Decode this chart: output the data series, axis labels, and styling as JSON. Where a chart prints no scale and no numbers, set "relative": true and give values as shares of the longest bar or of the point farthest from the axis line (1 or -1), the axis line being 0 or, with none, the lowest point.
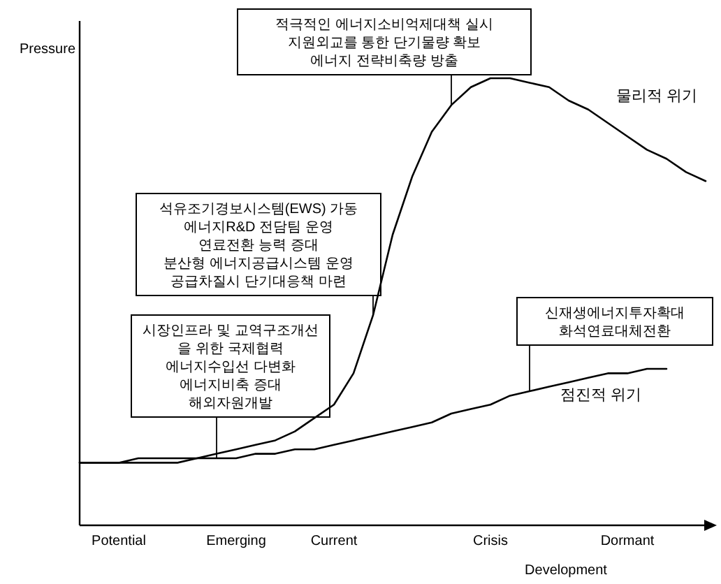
{
  "chart_data": {
    "type": "line",
    "relative": true,
    "xlabel": "Development",
    "ylabel": "Pressure",
    "categories": [
      null,
      null,
      "Potential",
      null,
      null,
      null,
      null,
      null,
      "Emerging",
      null,
      null,
      null,
      null,
      "Current",
      null,
      null,
      null,
      null,
      null,
      null,
      null,
      "Crisis",
      null,
      null,
      null,
      null,
      null,
      null,
      "Dormant",
      null,
      null,
      null,
      null
    ],
    "series": [
      {
        "name": "물리적 위기",
        "color": "#000000",
        "values": [
          0.14,
          0.14,
          0.14,
          0.15,
          0.15,
          0.15,
          0.15,
          0.16,
          0.17,
          0.18,
          0.19,
          0.21,
          0.24,
          0.27,
          0.34,
          0.47,
          0.65,
          0.78,
          0.88,
          0.94,
          0.98,
          1.0,
          1.0,
          0.99,
          0.98,
          0.95,
          0.93,
          0.9,
          0.87,
          0.84,
          0.82,
          0.79,
          0.77
        ]
      },
      {
        "name": "점진적 위기",
        "color": "#000000",
        "values": [
          0.14,
          0.14,
          0.14,
          0.14,
          0.14,
          0.14,
          0.15,
          0.15,
          0.15,
          0.16,
          0.16,
          0.17,
          0.17,
          0.18,
          0.19,
          0.2,
          0.21,
          0.22,
          0.23,
          0.25,
          0.26,
          0.27,
          0.29,
          0.3,
          0.31,
          0.32,
          0.33,
          0.34,
          0.34,
          0.35,
          0.35,
          null,
          null
        ]
      }
    ],
    "annotations": [
      "적극적인 에너지소비억제대책 실시\n지원외교를 통한 단기물량 확보\n에너지 전략비축량 방출",
      "석유조기경보시스템(EWS) 가동\n에너지R&D 전담팀 운영\n연료전환 능력 증대\n분산형 에너지공급시스템 운영\n공급차질시 단기대응책 마련",
      "시장인프라 및 교역구조개선\n을 위한 국제협력\n에너지수입선 다변화\n에너지비축 증대\n해외자원개발",
      "신재생에너지투자확대\n화석연료대체전환"
    ],
    "grid": false,
    "legend": false,
    "marker": "none",
    "line_style": "solid"
  }
}
